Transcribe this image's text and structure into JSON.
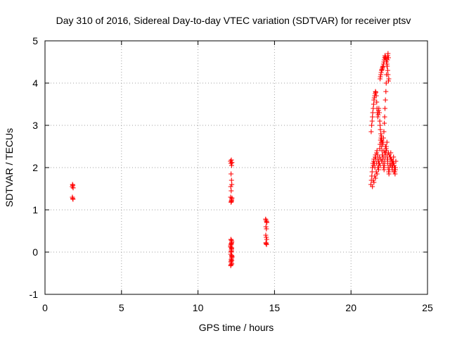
{
  "chart_data": {
    "type": "scatter",
    "title": "Day 310 of 2016, Sidereal Day-to-day VTEC variation (SDTVAR) for receiver ptsv",
    "xlabel": "GPS time / hours",
    "ylabel": "SDTVAR / TECUs",
    "xlim": [
      0,
      25
    ],
    "ylim": [
      -1,
      5
    ],
    "xticks": [
      0,
      5,
      10,
      15,
      20,
      25
    ],
    "yticks": [
      -1,
      0,
      1,
      2,
      3,
      4,
      5
    ],
    "xtick_labels": [
      "0",
      "5",
      "10",
      "15",
      "20",
      "25"
    ],
    "ytick_labels": [
      "-1",
      "0",
      "1",
      "2",
      "3",
      "4",
      "5"
    ],
    "grid": true,
    "marker": "+",
    "color": "#ff0000",
    "series": [
      {
        "name": "ptsv",
        "x": [
          1.78,
          1.8,
          1.82,
          1.84,
          1.79,
          1.81,
          1.83,
          12.12,
          12.15,
          12.18,
          12.2,
          12.22,
          12.16,
          12.19,
          12.21,
          12.14,
          12.17,
          12.13,
          12.2,
          12.18,
          12.16,
          12.22,
          12.19,
          12.15,
          12.21,
          12.17,
          12.13,
          12.2,
          12.18,
          12.16,
          12.14,
          12.22,
          12.19,
          12.21,
          12.17,
          12.15,
          12.18,
          12.2,
          12.16,
          12.13,
          12.19,
          12.22,
          12.17,
          12.15,
          12.21,
          12.14,
          12.18,
          12.2,
          14.42,
          14.45,
          14.48,
          14.5,
          14.44,
          14.47,
          14.43,
          14.46,
          14.49,
          14.45,
          14.48,
          14.44,
          21.32,
          21.35,
          21.38,
          21.4,
          21.42,
          21.45,
          21.48,
          21.5,
          21.52,
          21.55,
          21.58,
          21.6,
          21.62,
          21.65,
          21.68,
          21.7,
          21.72,
          21.75,
          21.78,
          21.8,
          21.82,
          21.85,
          21.88,
          21.9,
          21.92,
          21.95,
          21.98,
          22.0,
          22.02,
          22.05,
          22.08,
          22.1,
          22.12,
          22.15,
          22.18,
          22.2,
          22.22,
          22.25,
          22.28,
          22.3,
          22.32,
          22.35,
          22.38,
          22.4,
          22.42,
          22.45,
          21.3,
          21.33,
          21.36,
          21.38,
          21.4,
          21.43,
          21.46,
          21.48,
          21.5,
          21.53,
          21.56,
          21.58,
          21.6,
          21.63,
          21.66,
          21.68,
          21.7,
          21.73,
          21.76,
          21.78,
          21.8,
          21.83,
          21.86,
          21.88,
          21.9,
          21.93,
          21.96,
          21.98,
          22.0,
          22.03,
          22.06,
          22.08,
          22.1,
          22.13,
          22.16,
          22.18,
          22.2,
          22.23,
          22.26,
          22.28,
          22.3,
          22.33,
          22.36,
          22.38,
          22.4,
          22.43,
          22.46,
          22.48,
          22.5,
          22.53,
          22.56,
          22.58,
          22.6,
          22.63,
          22.66,
          22.68,
          22.7,
          22.73,
          22.76,
          22.78,
          22.8,
          22.83,
          22.86,
          22.88,
          22.9,
          22.93,
          21.4,
          21.6,
          21.8,
          22.0,
          22.2,
          22.4,
          22.6,
          22.8,
          21.5,
          21.7,
          21.9,
          22.1,
          22.3,
          22.5,
          22.7,
          22.85,
          21.45,
          21.65,
          21.85,
          22.05,
          22.25,
          22.45,
          22.65,
          22.82,
          21.55,
          21.75,
          21.95,
          22.15,
          22.35,
          22.55,
          22.75,
          22.9,
          21.9,
          21.95,
          22.0,
          22.05,
          22.1,
          22.15,
          22.2,
          22.25,
          22.3,
          22.35,
          22.4,
          22.45,
          21.92,
          21.97,
          22.02,
          22.07,
          22.12,
          22.17,
          22.22,
          22.27,
          22.32,
          22.37,
          22.42,
          22.47
        ],
        "y": [
          1.55,
          1.6,
          1.58,
          1.52,
          1.3,
          1.27,
          1.25,
          2.15,
          2.1,
          2.18,
          2.05,
          2.12,
          1.85,
          1.7,
          1.6,
          1.55,
          1.45,
          1.3,
          1.25,
          1.2,
          1.18,
          1.28,
          1.22,
          0.3,
          0.25,
          0.2,
          0.15,
          0.1,
          0.05,
          0.0,
          -0.05,
          -0.1,
          -0.15,
          -0.2,
          -0.25,
          -0.3,
          0.28,
          0.22,
          0.18,
          0.12,
          0.08,
          -0.12,
          -0.18,
          -0.22,
          -0.28,
          -0.32,
          0.02,
          -0.08,
          0.78,
          0.75,
          0.72,
          0.7,
          0.6,
          0.55,
          0.4,
          0.35,
          0.3,
          0.2,
          0.18,
          0.22,
          2.85,
          3.0,
          3.1,
          3.2,
          3.3,
          3.4,
          3.5,
          3.6,
          3.65,
          3.7,
          3.75,
          3.8,
          3.78,
          3.7,
          3.55,
          3.4,
          3.3,
          3.2,
          3.25,
          3.35,
          3.4,
          3.3,
          3.1,
          3.0,
          2.9,
          2.8,
          2.75,
          2.7,
          2.65,
          2.6,
          2.55,
          2.6,
          2.7,
          2.85,
          3.05,
          3.2,
          3.4,
          3.6,
          3.8,
          4.0,
          4.2,
          4.4,
          4.55,
          4.65,
          4.7,
          4.6,
          1.6,
          1.7,
          1.8,
          1.9,
          2.0,
          2.1,
          2.05,
          2.15,
          2.2,
          2.1,
          2.0,
          2.25,
          2.3,
          2.2,
          2.1,
          2.35,
          2.4,
          2.3,
          2.2,
          2.1,
          2.0,
          2.15,
          2.25,
          2.45,
          2.55,
          2.65,
          2.7,
          2.6,
          2.5,
          2.4,
          2.3,
          2.2,
          2.1,
          2.0,
          1.95,
          2.05,
          2.15,
          2.25,
          2.35,
          2.45,
          2.5,
          2.4,
          2.3,
          2.2,
          2.1,
          2.0,
          1.9,
          1.85,
          1.95,
          2.05,
          2.15,
          2.25,
          2.35,
          2.2,
          2.1,
          2.0,
          1.95,
          2.05,
          2.15,
          2.25,
          2.1,
          2.0,
          1.9,
          1.85,
          2.0,
          2.15,
          1.55,
          1.75,
          1.95,
          2.15,
          2.35,
          2.2,
          2.05,
          1.9,
          1.65,
          1.85,
          2.05,
          2.25,
          2.45,
          2.3,
          2.15,
          2.0,
          1.7,
          1.9,
          2.1,
          2.3,
          2.5,
          2.35,
          2.2,
          2.05,
          1.8,
          2.0,
          2.2,
          2.4,
          2.6,
          2.25,
          2.1,
          1.95,
          4.1,
          4.2,
          4.3,
          4.35,
          4.4,
          4.5,
          4.6,
          4.62,
          4.55,
          4.45,
          4.3,
          4.05,
          4.15,
          4.25,
          4.32,
          4.38,
          4.45,
          4.55,
          4.65,
          4.58,
          4.5,
          4.4,
          4.2,
          4.1
        ]
      }
    ]
  }
}
